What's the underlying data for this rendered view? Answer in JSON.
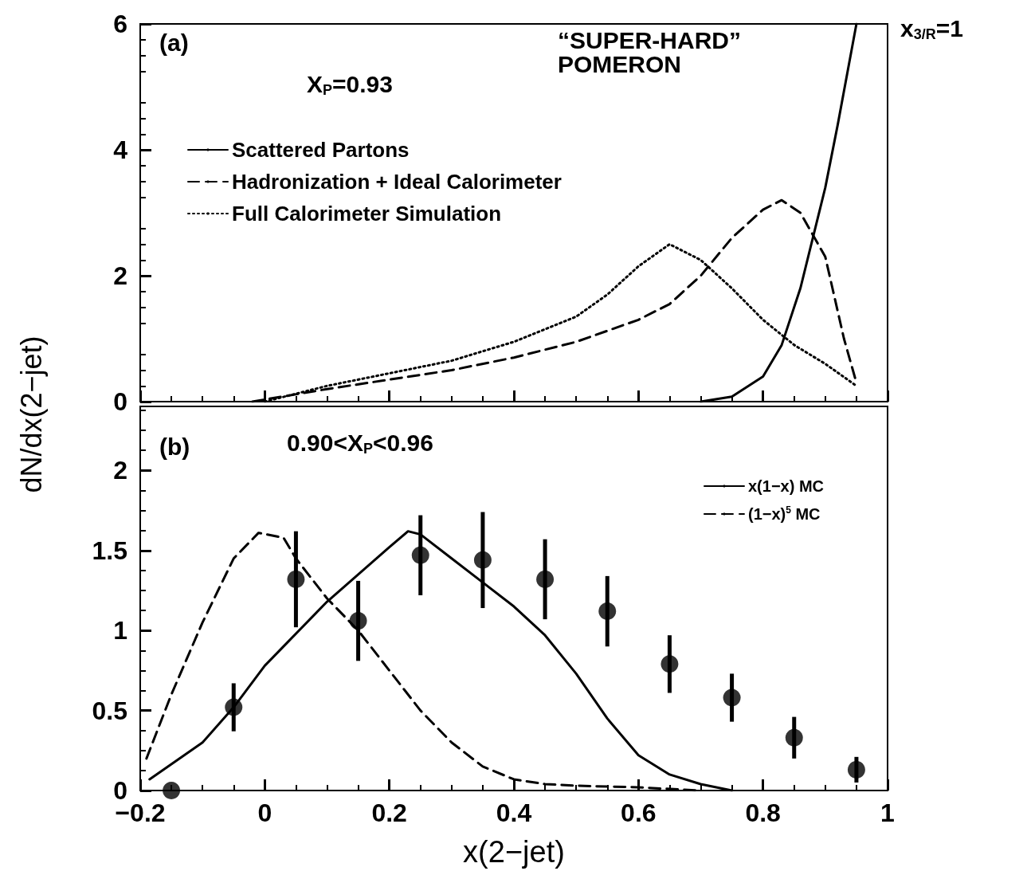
{
  "chart_data": [
    {
      "type": "line",
      "ylabel": "dN/dx(2−jet)",
      "annotations": [
        "(a)",
        "X$_{P}$=0.93",
        "“SUPER-HARD” POMERON",
        "x$_{3/R}$=1"
      ],
      "xlim": [
        -0.2,
        1
      ],
      "xticks": [
        -0.2,
        0,
        0.2,
        0.4,
        0.6,
        0.8,
        1
      ],
      "ylim": [
        0,
        6
      ],
      "yticks": [
        0,
        2,
        4,
        6
      ],
      "tick_labels": "y",
      "grid": false,
      "legend": "top left",
      "marker": "none",
      "series": [
        {
          "name": "Scattered Partons",
          "color": "#000000",
          "line_style": "solid",
          "x": [
            0.7,
            0.75,
            0.8,
            0.83,
            0.86,
            0.88,
            0.9,
            0.92,
            0.95
          ],
          "values": [
            0,
            0.08,
            0.4,
            0.9,
            1.8,
            2.6,
            3.4,
            4.4,
            6
          ]
        },
        {
          "name": "Hadronization + Ideal Calorimeter",
          "color": "#000000",
          "line_style": "dashed",
          "x": [
            -0.02,
            0.1,
            0.2,
            0.3,
            0.4,
            0.5,
            0.6,
            0.65,
            0.7,
            0.75,
            0.8,
            0.83,
            0.86,
            0.9,
            0.93,
            0.95
          ],
          "values": [
            0,
            0.2,
            0.35,
            0.5,
            0.7,
            0.95,
            1.3,
            1.55,
            2.0,
            2.6,
            3.05,
            3.2,
            3.0,
            2.3,
            1.0,
            0.3
          ]
        },
        {
          "name": "Full Calorimeter Simulation",
          "color": "#000000",
          "line_style": "dotted",
          "x": [
            0,
            0.1,
            0.2,
            0.3,
            0.4,
            0.5,
            0.55,
            0.6,
            0.65,
            0.7,
            0.75,
            0.8,
            0.85,
            0.9,
            0.95
          ],
          "values": [
            0,
            0.25,
            0.45,
            0.65,
            0.95,
            1.35,
            1.7,
            2.15,
            2.5,
            2.25,
            1.8,
            1.3,
            0.9,
            0.6,
            0.25
          ]
        }
      ]
    },
    {
      "type": "line",
      "xlabel": "x(2−jet)",
      "annotations": [
        "(b)",
        "0.90<X$_{P}$<0.96"
      ],
      "xlim": [
        -0.2,
        1
      ],
      "xticks": [
        -0.2,
        0,
        0.2,
        0.4,
        0.6,
        0.8,
        1
      ],
      "ylim": [
        0,
        2.4
      ],
      "yticks": [
        0,
        0.5,
        1,
        1.5,
        2
      ],
      "grid": false,
      "legend": "top right",
      "marker": "none",
      "series": [
        {
          "name": "x(1−x) MC",
          "color": "#000000",
          "line_style": "solid",
          "x": [
            -0.185,
            -0.1,
            -0.05,
            0,
            0.1,
            0.2,
            0.23,
            0.25,
            0.3,
            0.35,
            0.4,
            0.45,
            0.5,
            0.55,
            0.6,
            0.65,
            0.7,
            0.75
          ],
          "values": [
            0.07,
            0.3,
            0.52,
            0.78,
            1.18,
            1.52,
            1.62,
            1.6,
            1.45,
            1.3,
            1.15,
            0.97,
            0.73,
            0.45,
            0.22,
            0.1,
            0.04,
            0
          ]
        },
        {
          "name": "(1−x)$^{5}$ MC",
          "color": "#000000",
          "line_style": "dashed",
          "x": [
            -0.19,
            -0.15,
            -0.1,
            -0.05,
            -0.01,
            0.03,
            0.05,
            0.1,
            0.15,
            0.2,
            0.25,
            0.3,
            0.35,
            0.4,
            0.45,
            0.5,
            0.6,
            0.7
          ],
          "values": [
            0.2,
            0.6,
            1.05,
            1.45,
            1.61,
            1.58,
            1.45,
            1.2,
            1.0,
            0.75,
            0.5,
            0.3,
            0.15,
            0.07,
            0.04,
            0.03,
            0.02,
            0
          ]
        },
        {
          "type": "scatter",
          "color": "#000000",
          "marker": "circle",
          "x": [
            -0.15,
            -0.05,
            0.05,
            0.15,
            0.25,
            0.35,
            0.45,
            0.55,
            0.65,
            0.75,
            0.85,
            0.95
          ],
          "values": [
            0,
            0.52,
            1.32,
            1.06,
            1.47,
            1.44,
            1.32,
            1.12,
            0.79,
            0.58,
            0.33,
            0.13
          ],
          "errors": [
            null,
            0.15,
            0.3,
            0.25,
            0.25,
            0.3,
            0.25,
            0.22,
            0.18,
            0.15,
            0.13,
            0.08
          ]
        }
      ]
    }
  ]
}
